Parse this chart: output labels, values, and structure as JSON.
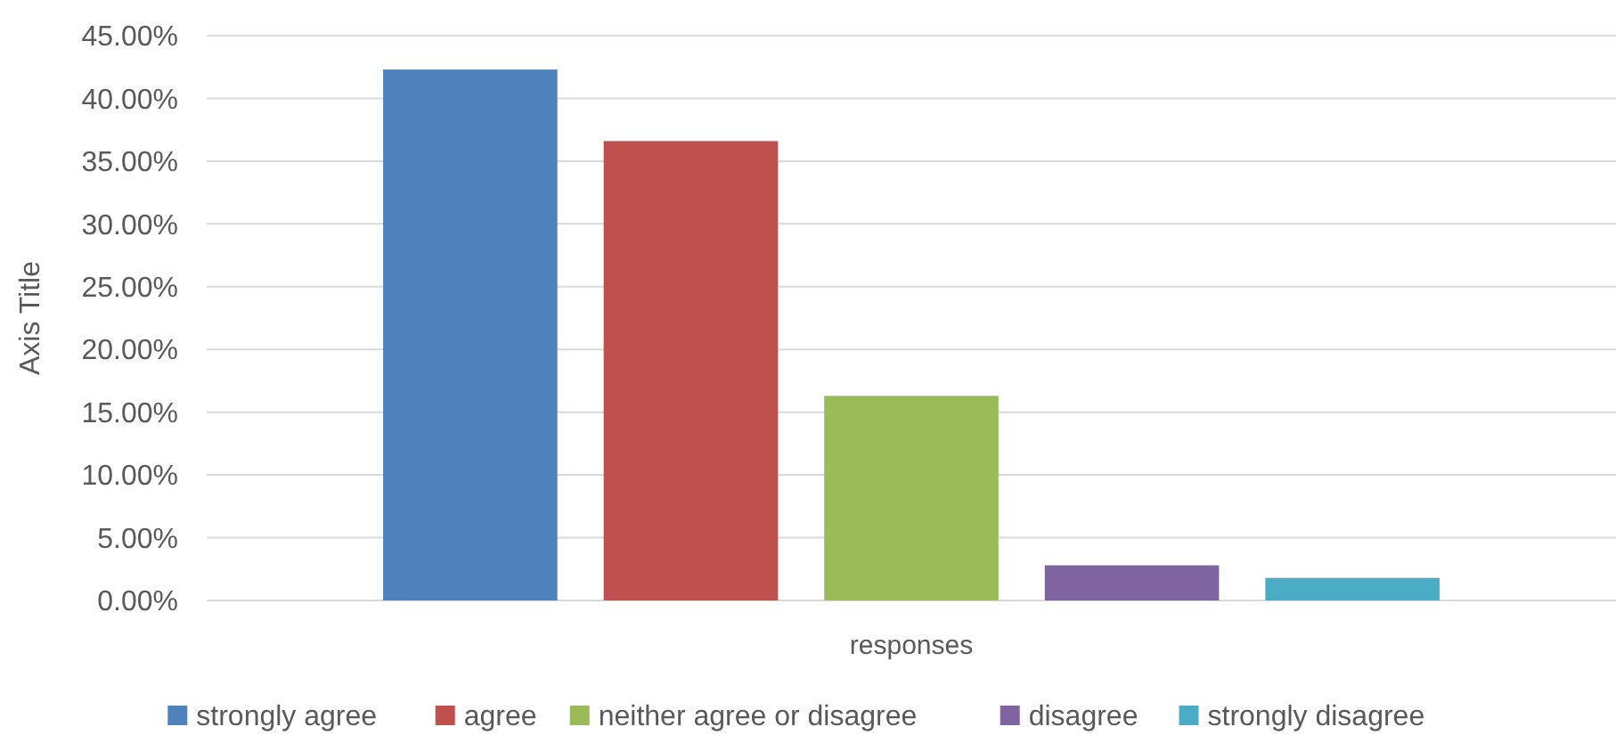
{
  "chart_data": {
    "type": "bar",
    "ylabel": "Axis Title",
    "categories": [
      "responses"
    ],
    "series": [
      {
        "name": "strongly agree",
        "color": "#4f81bd",
        "values": [
          42.3
        ]
      },
      {
        "name": "agree",
        "color": "#c0504d",
        "values": [
          36.6
        ]
      },
      {
        "name": "neither agree or disagree",
        "color": "#9bbb59",
        "values": [
          16.3
        ]
      },
      {
        "name": "disagree",
        "color": "#8064a2",
        "values": [
          2.8
        ]
      },
      {
        "name": "strongly disagree",
        "color": "#4bacc6",
        "values": [
          1.8
        ]
      }
    ],
    "ylim": [
      0,
      45
    ],
    "yticks": [
      {
        "value": 0,
        "label": "0.00%"
      },
      {
        "value": 5,
        "label": "5.00%"
      },
      {
        "value": 10,
        "label": "10.00%"
      },
      {
        "value": 15,
        "label": "15.00%"
      },
      {
        "value": 20,
        "label": "20.00%"
      },
      {
        "value": 25,
        "label": "25.00%"
      },
      {
        "value": 30,
        "label": "30.00%"
      },
      {
        "value": 35,
        "label": "35.00%"
      },
      {
        "value": 40,
        "label": "40.00%"
      },
      {
        "value": 45,
        "label": "45.00%"
      }
    ],
    "grid": "y",
    "legend": "bottom"
  }
}
